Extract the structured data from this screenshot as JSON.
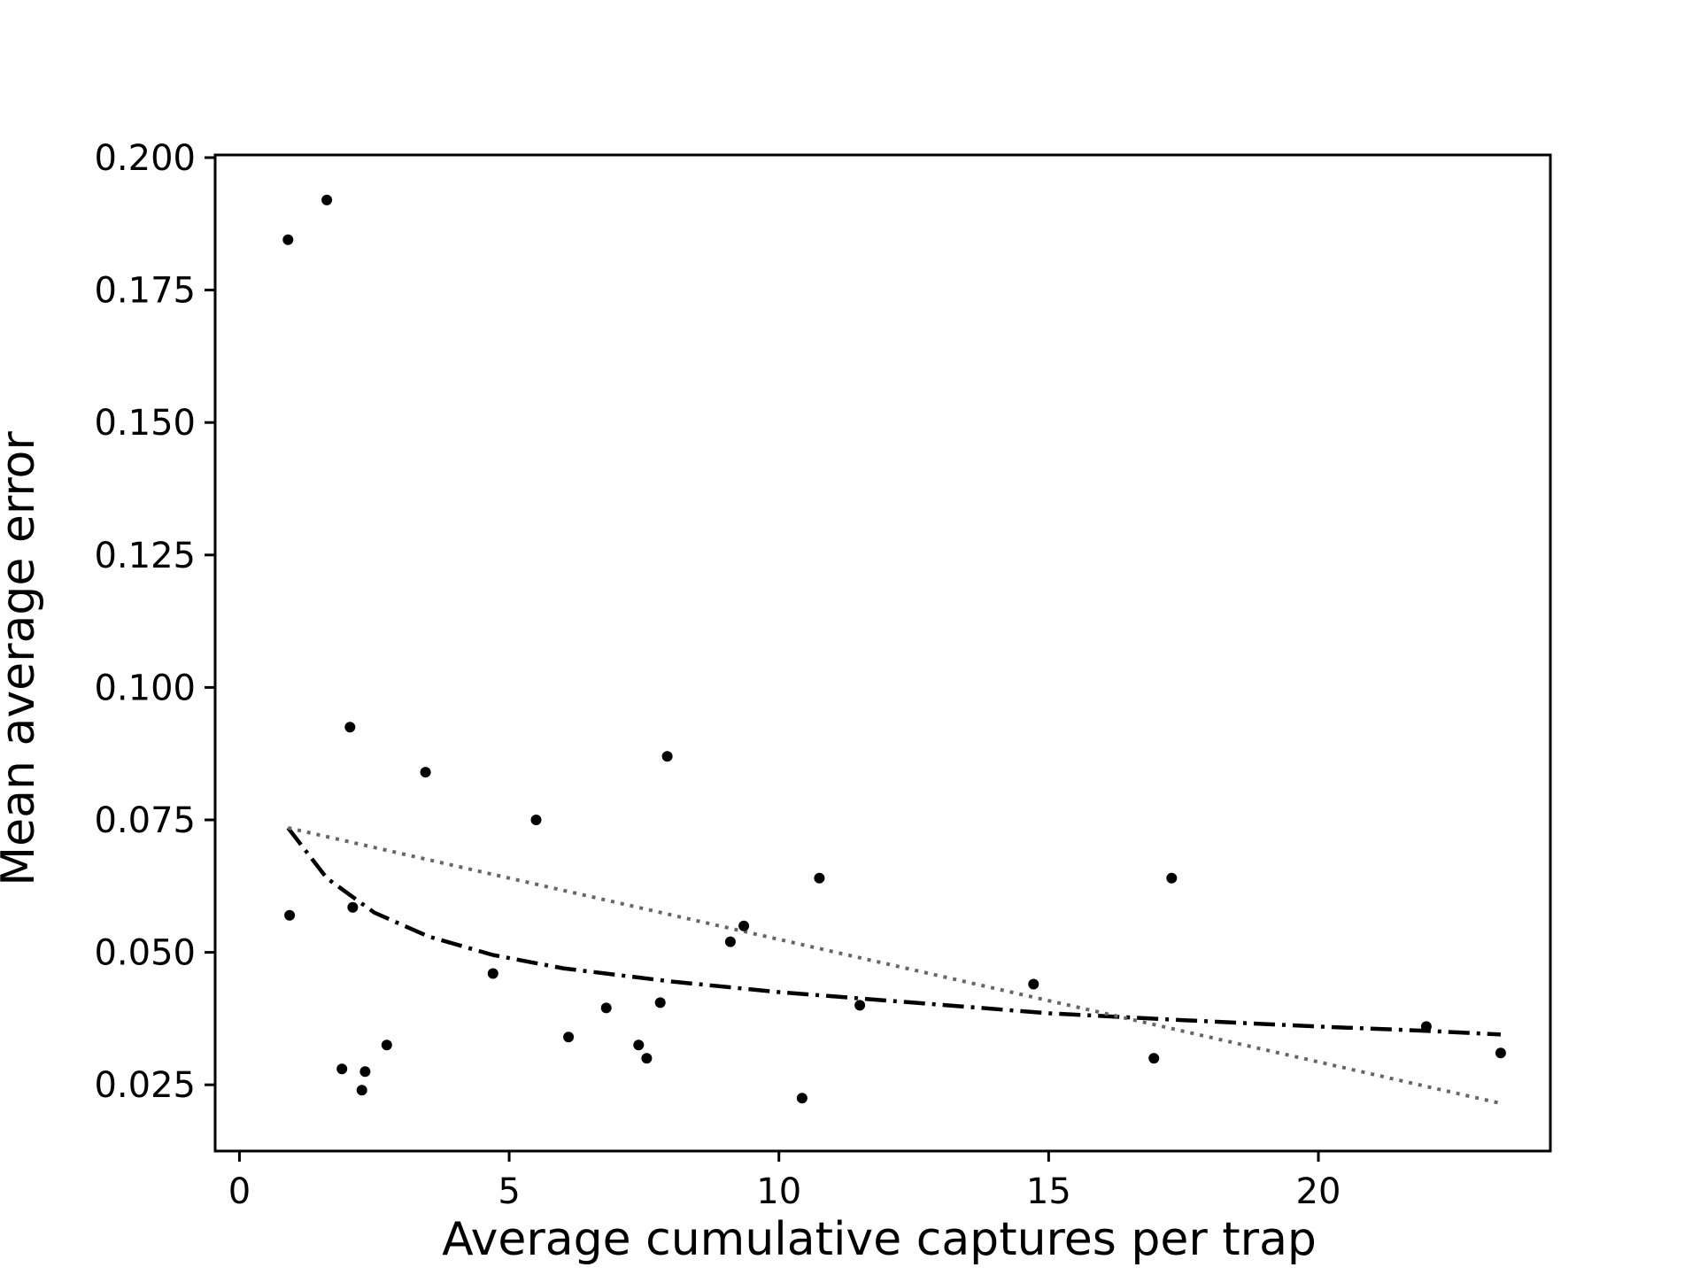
{
  "chart_data": {
    "type": "scatter",
    "title": "",
    "xlabel": "Average cumulative captures per trap",
    "ylabel": "Mean average error",
    "xlim": [
      -0.45,
      24.3
    ],
    "ylim": [
      0.0125,
      0.2005
    ],
    "xticks": [
      0,
      5,
      10,
      15,
      20
    ],
    "xtick_labels": [
      "0",
      "5",
      "10",
      "15",
      "20"
    ],
    "yticks": [
      0.025,
      0.05,
      0.075,
      0.1,
      0.125,
      0.15,
      0.175,
      0.2
    ],
    "ytick_labels": [
      "0.025",
      "0.050",
      "0.075",
      "0.100",
      "0.125",
      "0.150",
      "0.175",
      "0.200"
    ],
    "grid": false,
    "legend": "none",
    "points": {
      "color": "#000000",
      "x": [
        0.9,
        1.62,
        0.93,
        1.9,
        2.05,
        2.1,
        2.27,
        2.33,
        2.73,
        3.45,
        4.7,
        5.5,
        6.1,
        6.8,
        7.4,
        7.55,
        7.8,
        7.93,
        9.1,
        9.35,
        10.43,
        10.75,
        11.5,
        14.72,
        16.95,
        17.28,
        22.0,
        23.38
      ],
      "y": [
        0.1845,
        0.192,
        0.057,
        0.028,
        0.0925,
        0.0585,
        0.024,
        0.0275,
        0.0325,
        0.084,
        0.046,
        0.075,
        0.034,
        0.0395,
        0.0325,
        0.03,
        0.0405,
        0.087,
        0.052,
        0.055,
        0.0225,
        0.064,
        0.04,
        0.044,
        0.03,
        0.064,
        0.036,
        0.031
      ]
    },
    "series": [
      {
        "style": "dash-dot",
        "color": "#000000",
        "x": [
          0.9,
          1.62,
          2.5,
          3.5,
          4.7,
          6.0,
          8.0,
          10.0,
          12.5,
          15.0,
          17.5,
          20.0,
          22.0,
          23.38
        ],
        "y": [
          0.0735,
          0.064,
          0.0575,
          0.053,
          0.0495,
          0.047,
          0.0445,
          0.0425,
          0.0405,
          0.0385,
          0.0372,
          0.036,
          0.0352,
          0.0345
        ]
      },
      {
        "style": "dotted",
        "color": "#666666",
        "x": [
          0.9,
          23.38
        ],
        "y": [
          0.0735,
          0.0215
        ]
      }
    ]
  }
}
